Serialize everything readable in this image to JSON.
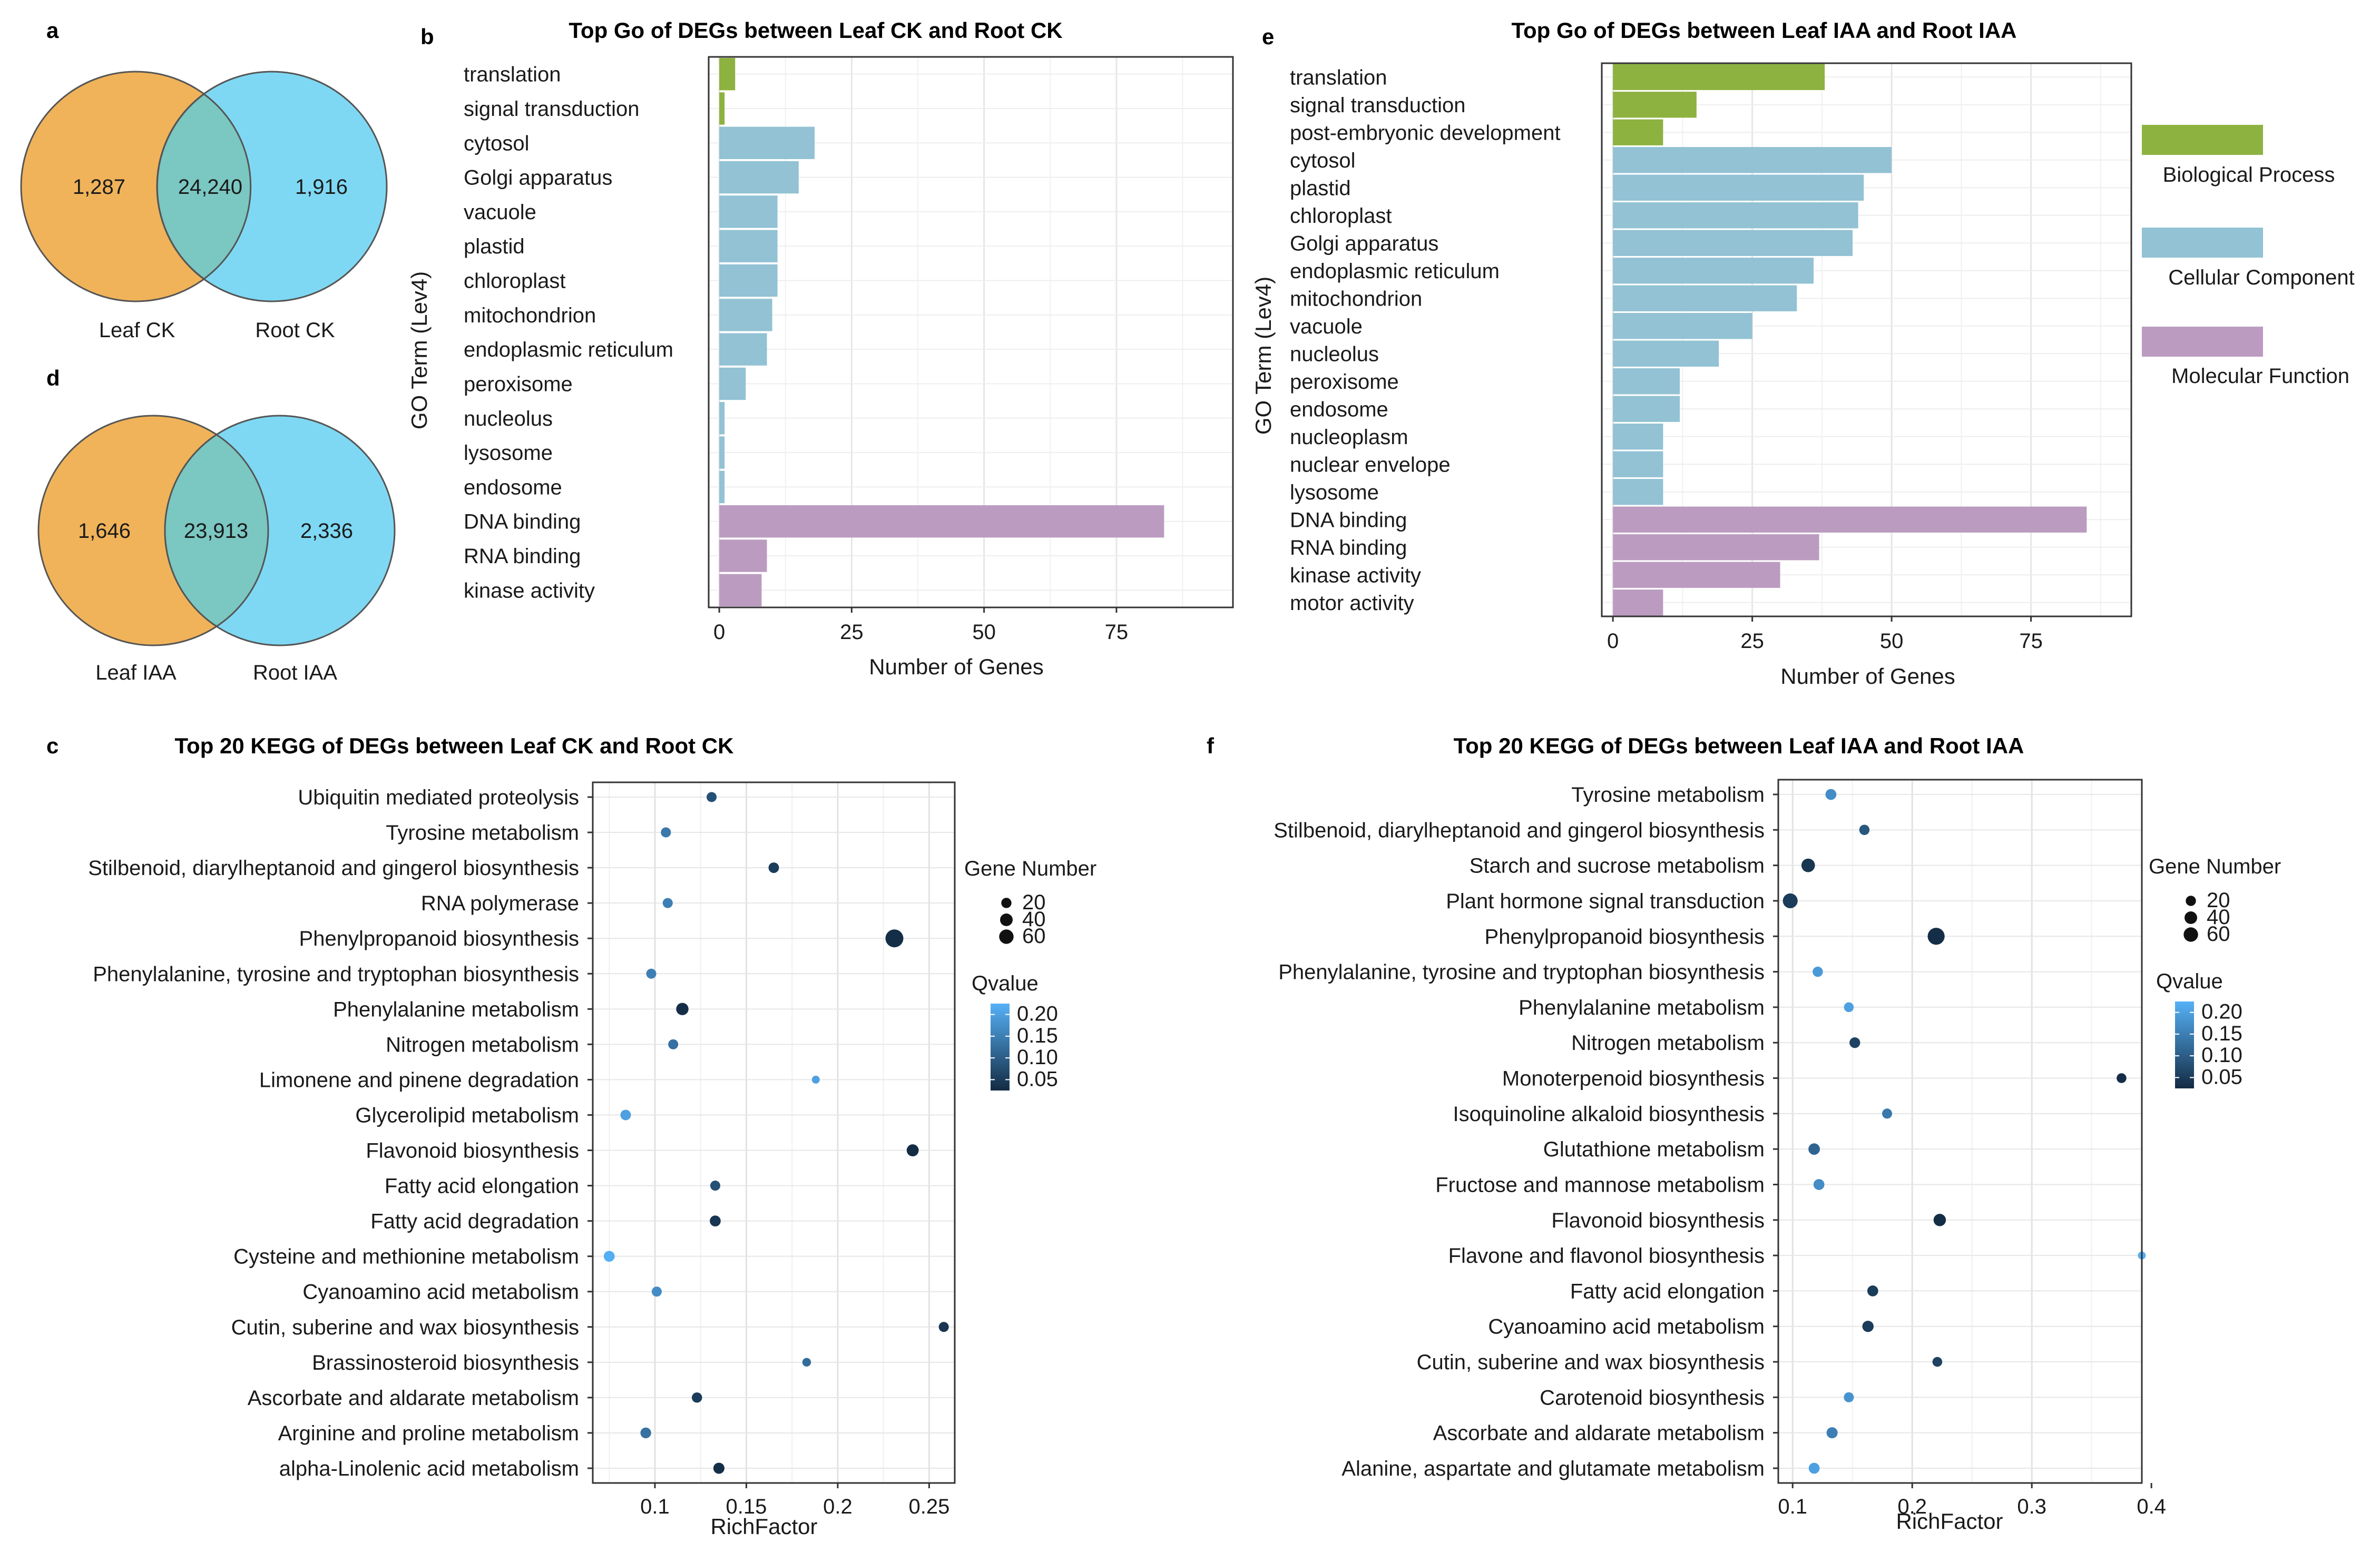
{
  "colors": {
    "biological_process": "#8db240",
    "cellular_component": "#92c2d4",
    "molecular_function": "#bb9cc0",
    "venn_left": "#f0b35a",
    "venn_right": "#7fd8f3",
    "venn_overlap": "#7bc7c2",
    "qvalue_low": "#132b43",
    "qvalue_high": "#56b1f7"
  },
  "panels": {
    "a": "a",
    "b": "b",
    "c": "c",
    "d": "d",
    "e": "e",
    "f": "f"
  },
  "chart_data": [
    {
      "id": "a",
      "type": "venn",
      "left_label": "Leaf CK",
      "right_label": "Root CK",
      "left_only": "1,287",
      "overlap": "24,240",
      "right_only": "1,916"
    },
    {
      "id": "d",
      "type": "venn",
      "left_label": "Leaf IAA",
      "right_label": "Root IAA",
      "left_only": "1,646",
      "overlap": "23,913",
      "right_only": "2,336"
    },
    {
      "id": "b",
      "type": "bar",
      "orientation": "horizontal",
      "title": "Top Go of DEGs between Leaf CK and Root CK",
      "xlabel": "Number of Genes",
      "ylabel": "GO Term (Lev4)",
      "xlim": [
        -2,
        97
      ],
      "xticks": [
        0,
        25,
        50,
        75
      ],
      "bars": [
        {
          "term": "translation",
          "value": 3,
          "category": "biological_process"
        },
        {
          "term": "signal transduction",
          "value": 1,
          "category": "biological_process"
        },
        {
          "term": "cytosol",
          "value": 18,
          "category": "cellular_component"
        },
        {
          "term": "Golgi apparatus",
          "value": 15,
          "category": "cellular_component"
        },
        {
          "term": "vacuole",
          "value": 11,
          "category": "cellular_component"
        },
        {
          "term": "plastid",
          "value": 11,
          "category": "cellular_component"
        },
        {
          "term": "chloroplast",
          "value": 11,
          "category": "cellular_component"
        },
        {
          "term": "mitochondrion",
          "value": 10,
          "category": "cellular_component"
        },
        {
          "term": "endoplasmic reticulum",
          "value": 9,
          "category": "cellular_component"
        },
        {
          "term": "peroxisome",
          "value": 5,
          "category": "cellular_component"
        },
        {
          "term": "nucleolus",
          "value": 1,
          "category": "cellular_component"
        },
        {
          "term": "lysosome",
          "value": 1,
          "category": "cellular_component"
        },
        {
          "term": "endosome",
          "value": 1,
          "category": "cellular_component"
        },
        {
          "term": "DNA binding",
          "value": 84,
          "category": "molecular_function"
        },
        {
          "term": "RNA binding",
          "value": 9,
          "category": "molecular_function"
        },
        {
          "term": "kinase activity",
          "value": 8,
          "category": "molecular_function"
        }
      ]
    },
    {
      "id": "e",
      "type": "bar",
      "orientation": "horizontal",
      "title": "Top Go of DEGs between Leaf IAA and Root IAA",
      "xlabel": "Number of Genes",
      "ylabel": "GO Term (Lev4)",
      "xlim": [
        -2,
        93
      ],
      "xticks": [
        0,
        25,
        50,
        75
      ],
      "bars": [
        {
          "term": "translation",
          "value": 38,
          "category": "biological_process"
        },
        {
          "term": "signal transduction",
          "value": 15,
          "category": "biological_process"
        },
        {
          "term": "post-embryonic development",
          "value": 9,
          "category": "biological_process"
        },
        {
          "term": "cytosol",
          "value": 50,
          "category": "cellular_component"
        },
        {
          "term": "plastid",
          "value": 45,
          "category": "cellular_component"
        },
        {
          "term": "chloroplast",
          "value": 44,
          "category": "cellular_component"
        },
        {
          "term": "Golgi apparatus",
          "value": 43,
          "category": "cellular_component"
        },
        {
          "term": "endoplasmic reticulum",
          "value": 36,
          "category": "cellular_component"
        },
        {
          "term": "mitochondrion",
          "value": 33,
          "category": "cellular_component"
        },
        {
          "term": "vacuole",
          "value": 25,
          "category": "cellular_component"
        },
        {
          "term": "nucleolus",
          "value": 19,
          "category": "cellular_component"
        },
        {
          "term": "peroxisome",
          "value": 12,
          "category": "cellular_component"
        },
        {
          "term": "endosome",
          "value": 12,
          "category": "cellular_component"
        },
        {
          "term": "nucleoplasm",
          "value": 9,
          "category": "cellular_component"
        },
        {
          "term": "nuclear envelope",
          "value": 9,
          "category": "cellular_component"
        },
        {
          "term": "lysosome",
          "value": 9,
          "category": "cellular_component"
        },
        {
          "term": "DNA binding",
          "value": 85,
          "category": "molecular_function"
        },
        {
          "term": "RNA binding",
          "value": 37,
          "category": "molecular_function"
        },
        {
          "term": "kinase activity",
          "value": 30,
          "category": "molecular_function"
        },
        {
          "term": "motor activity",
          "value": 9,
          "category": "molecular_function"
        }
      ],
      "legend": [
        {
          "label": "Biological Process",
          "category": "biological_process"
        },
        {
          "label": "Cellular Component",
          "category": "cellular_component"
        },
        {
          "label": "Molecular Function",
          "category": "molecular_function"
        }
      ]
    },
    {
      "id": "c",
      "type": "scatter",
      "title": "Top 20 KEGG of DEGs between Leaf CK and Root CK",
      "xlabel": "RichFactor",
      "xlim": [
        0.066,
        0.264
      ],
      "xticks": [
        0.1,
        0.15,
        0.2,
        0.25
      ],
      "xtick_labels": [
        "0.1",
        "0.15",
        "0.2",
        "0.25"
      ],
      "size_legend_title": "Gene Number",
      "size_legend": [
        20,
        40,
        60
      ],
      "size_legend_labels": [
        "20",
        "40",
        "60"
      ],
      "color_legend_title": "Qvalue",
      "color_range": [
        0.025,
        0.225
      ],
      "color_ticks": [
        "0.20",
        "0.15",
        "0.10",
        "0.05"
      ],
      "points": [
        {
          "pathway": "Ubiquitin mediated proteolysis",
          "rich_factor": 0.131,
          "gene_number": 10,
          "qvalue": 0.08
        },
        {
          "pathway": "Tyrosine metabolism",
          "rich_factor": 0.106,
          "gene_number": 10,
          "qvalue": 0.14
        },
        {
          "pathway": "Stilbenoid, diarylheptanoid and gingerol biosynthesis",
          "rich_factor": 0.165,
          "gene_number": 12,
          "qvalue": 0.05
        },
        {
          "pathway": "RNA polymerase",
          "rich_factor": 0.107,
          "gene_number": 10,
          "qvalue": 0.15
        },
        {
          "pathway": "Phenylpropanoid biosynthesis",
          "rich_factor": 0.231,
          "gene_number": 70,
          "qvalue": 0.03
        },
        {
          "pathway": "Phenylalanine, tyrosine and tryptophan biosynthesis",
          "rich_factor": 0.098,
          "gene_number": 10,
          "qvalue": 0.15
        },
        {
          "pathway": "Phenylalanine metabolism",
          "rich_factor": 0.115,
          "gene_number": 22,
          "qvalue": 0.03
        },
        {
          "pathway": "Nitrogen metabolism",
          "rich_factor": 0.11,
          "gene_number": 10,
          "qvalue": 0.13
        },
        {
          "pathway": "Limonene and pinene degradation",
          "rich_factor": 0.188,
          "gene_number": 3,
          "qvalue": 0.2
        },
        {
          "pathway": "Glycerolipid metabolism",
          "rich_factor": 0.084,
          "gene_number": 12,
          "qvalue": 0.2
        },
        {
          "pathway": "Flavonoid biosynthesis",
          "rich_factor": 0.241,
          "gene_number": 20,
          "qvalue": 0.02
        },
        {
          "pathway": "Fatty acid elongation",
          "rich_factor": 0.133,
          "gene_number": 10,
          "qvalue": 0.08
        },
        {
          "pathway": "Fatty acid degradation",
          "rich_factor": 0.133,
          "gene_number": 14,
          "qvalue": 0.04
        },
        {
          "pathway": "Cysteine and methionine metabolism",
          "rich_factor": 0.075,
          "gene_number": 14,
          "qvalue": 0.22
        },
        {
          "pathway": "Cyanoamino acid metabolism",
          "rich_factor": 0.101,
          "gene_number": 10,
          "qvalue": 0.17
        },
        {
          "pathway": "Cutin, suberine and wax biosynthesis",
          "rich_factor": 0.258,
          "gene_number": 10,
          "qvalue": 0.04
        },
        {
          "pathway": "Brassinosteroid biosynthesis",
          "rich_factor": 0.183,
          "gene_number": 5,
          "qvalue": 0.12
        },
        {
          "pathway": "Ascorbate and aldarate metabolism",
          "rich_factor": 0.123,
          "gene_number": 11,
          "qvalue": 0.05
        },
        {
          "pathway": "Arginine and proline metabolism",
          "rich_factor": 0.095,
          "gene_number": 13,
          "qvalue": 0.13
        },
        {
          "pathway": "alpha-Linolenic acid metabolism",
          "rich_factor": 0.135,
          "gene_number": 15,
          "qvalue": 0.03
        }
      ]
    },
    {
      "id": "f",
      "type": "scatter",
      "title": "Top 20 KEGG of DEGs between Leaf IAA and Root IAA",
      "xlabel": "RichFactor",
      "xlim": [
        0.088,
        0.392
      ],
      "xticks": [
        0.1,
        0.2,
        0.3,
        0.4
      ],
      "xtick_labels": [
        "0.1",
        "0.2",
        "0.3",
        "0.4"
      ],
      "size_legend_title": "Gene Number",
      "size_legend": [
        20,
        40,
        60
      ],
      "size_legend_labels": [
        "20",
        "40",
        "60"
      ],
      "color_legend_title": "Qvalue",
      "color_range": [
        0.025,
        0.225
      ],
      "color_ticks": [
        "0.20",
        "0.15",
        "0.10",
        "0.05"
      ],
      "points": [
        {
          "pathway": "Tyrosine metabolism",
          "rich_factor": 0.132,
          "gene_number": 14,
          "qvalue": 0.17
        },
        {
          "pathway": "Stilbenoid, diarylheptanoid and gingerol biosynthesis",
          "rich_factor": 0.16,
          "gene_number": 11,
          "qvalue": 0.09
        },
        {
          "pathway": "Starch and sucrose metabolism",
          "rich_factor": 0.113,
          "gene_number": 30,
          "qvalue": 0.04
        },
        {
          "pathway": "Plant hormone signal transduction",
          "rich_factor": 0.098,
          "gene_number": 40,
          "qvalue": 0.05
        },
        {
          "pathway": "Phenylpropanoid biosynthesis",
          "rich_factor": 0.22,
          "gene_number": 60,
          "qvalue": 0.03
        },
        {
          "pathway": "Phenylalanine, tyrosine and tryptophan biosynthesis",
          "rich_factor": 0.121,
          "gene_number": 11,
          "qvalue": 0.19
        },
        {
          "pathway": "Phenylalanine metabolism",
          "rich_factor": 0.147,
          "gene_number": 9,
          "qvalue": 0.2
        },
        {
          "pathway": "Nitrogen metabolism",
          "rich_factor": 0.152,
          "gene_number": 13,
          "qvalue": 0.06
        },
        {
          "pathway": "Monoterpenoid biosynthesis",
          "rich_factor": 0.375,
          "gene_number": 9,
          "qvalue": 0.03
        },
        {
          "pathway": "Isoquinoline alkaloid biosynthesis",
          "rich_factor": 0.179,
          "gene_number": 10,
          "qvalue": 0.14
        },
        {
          "pathway": "Glutathione metabolism",
          "rich_factor": 0.118,
          "gene_number": 17,
          "qvalue": 0.11
        },
        {
          "pathway": "Fructose and mannose metabolism",
          "rich_factor": 0.122,
          "gene_number": 14,
          "qvalue": 0.17
        },
        {
          "pathway": "Flavonoid biosynthesis",
          "rich_factor": 0.223,
          "gene_number": 22,
          "qvalue": 0.03
        },
        {
          "pathway": "Flavone and flavonol biosynthesis",
          "rich_factor": 0.392,
          "gene_number": 3,
          "qvalue": 0.22
        },
        {
          "pathway": "Fatty acid elongation",
          "rich_factor": 0.167,
          "gene_number": 14,
          "qvalue": 0.05
        },
        {
          "pathway": "Cyanoamino acid metabolism",
          "rich_factor": 0.163,
          "gene_number": 16,
          "qvalue": 0.05
        },
        {
          "pathway": "Cutin, suberine and wax biosynthesis",
          "rich_factor": 0.221,
          "gene_number": 9,
          "qvalue": 0.06
        },
        {
          "pathway": "Carotenoid biosynthesis",
          "rich_factor": 0.147,
          "gene_number": 10,
          "qvalue": 0.18
        },
        {
          "pathway": "Ascorbate and aldarate metabolism",
          "rich_factor": 0.133,
          "gene_number": 15,
          "qvalue": 0.15
        },
        {
          "pathway": "Alanine, aspartate and glutamate metabolism",
          "rich_factor": 0.118,
          "gene_number": 14,
          "qvalue": 0.2
        }
      ]
    }
  ]
}
